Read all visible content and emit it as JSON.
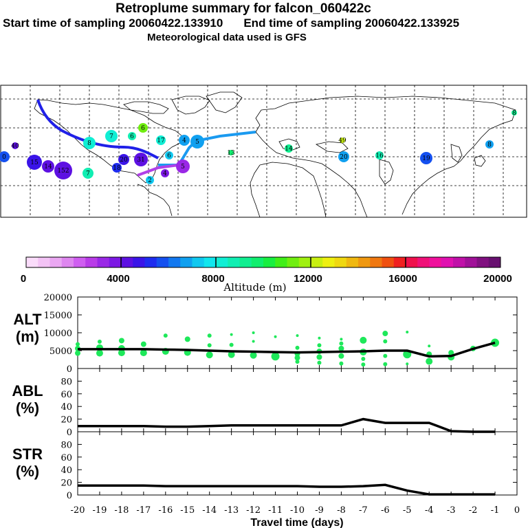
{
  "header": {
    "title": "Retroplume summary for falcon_060422c",
    "start_label": "Start time of sampling 20060422.133910",
    "end_label": "End time of sampling 20060422.133925",
    "met_label": "Meteorological data used is GFS"
  },
  "colorbar": {
    "tick_labels": [
      "0",
      "4000",
      "8000",
      "12000",
      "16000",
      "20000"
    ],
    "title": "Altitude (m)",
    "colors": [
      "#fadcfa",
      "#f3c3f5",
      "#eaa7f2",
      "#de86ef",
      "#cf5ef0",
      "#b93ce8",
      "#9a28e6",
      "#7c18e4",
      "#5d10e2",
      "#3a14e8",
      "#1e2cf0",
      "#1450f0",
      "#1278f0",
      "#10a0f0",
      "#10c8f0",
      "#10e6ee",
      "#10eed4",
      "#10eeb2",
      "#10ee90",
      "#10ee6e",
      "#18ee40",
      "#40ee18",
      "#70ee10",
      "#a0f010",
      "#c8f010",
      "#eef010",
      "#f0d810",
      "#f0b810",
      "#f09810",
      "#f07810",
      "#f05010",
      "#f02020",
      "#f0104c",
      "#f01078",
      "#f0109c",
      "#e010b0",
      "#c010a8",
      "#a01098",
      "#801080",
      "#681070"
    ]
  },
  "map": {
    "markers": [
      {
        "label": "0",
        "alt": 5500
      },
      {
        "label": "15",
        "alt": 4600
      },
      {
        "label": "14",
        "alt": 4400
      },
      {
        "label": "152",
        "alt": 4000
      },
      {
        "label": "40",
        "alt": 4300
      },
      {
        "label": "7",
        "alt": 8400
      },
      {
        "label": "6",
        "alt": 11200
      },
      {
        "label": "6",
        "alt": 8600
      },
      {
        "label": "8",
        "alt": 8200
      },
      {
        "label": "18",
        "alt": 5200
      },
      {
        "label": "20",
        "alt": 4600
      },
      {
        "label": "31",
        "alt": 4400
      },
      {
        "label": "17",
        "alt": 8000
      },
      {
        "label": "4",
        "alt": 3600
      },
      {
        "label": "5",
        "alt": 3400
      },
      {
        "label": "6",
        "alt": 7400
      },
      {
        "label": "14",
        "alt": 9200
      },
      {
        "label": "13",
        "alt": 9800
      },
      {
        "label": "20",
        "alt": 6800
      },
      {
        "label": "16",
        "alt": 8600
      },
      {
        "label": "49",
        "alt": 12000
      },
      {
        "label": "19",
        "alt": 5800
      },
      {
        "label": "8",
        "alt": 6800
      },
      {
        "label": "8",
        "alt": 9400
      },
      {
        "label": "4",
        "alt": 6600
      },
      {
        "label": "7",
        "alt": 8800
      },
      {
        "label": "2",
        "alt": 7200
      },
      {
        "label": "5",
        "alt": 6600
      }
    ]
  },
  "chart_data": [
    {
      "type": "scatter",
      "panel": "ALT",
      "ylabel": "ALT\n(m)",
      "ylabel_lines": [
        "ALT",
        "(m)"
      ],
      "xlabel": "Travel time (days)",
      "ylim": [
        0,
        20000
      ],
      "yticks": [
        "0",
        "5000",
        "10000",
        "15000",
        "20000"
      ],
      "xticks": [
        "-20",
        "-19",
        "-18",
        "-17",
        "-16",
        "-15",
        "-14",
        "-13",
        "-12",
        "-11",
        "-10",
        "-9",
        "-8",
        "-7",
        "-6",
        "-5",
        "-4",
        "-3",
        "-2",
        "-1",
        "0"
      ],
      "mean_line": {
        "x": [
          -20,
          -19,
          -18,
          -17,
          -16,
          -15,
          -14,
          -13,
          -12,
          -11,
          -10,
          -9,
          -8,
          -7,
          -6,
          -5,
          -4,
          -3,
          -2,
          -1
        ],
        "y": [
          5400,
          5400,
          5400,
          5400,
          5300,
          5200,
          5000,
          4800,
          4700,
          4600,
          4500,
          4600,
          4700,
          4800,
          5000,
          5000,
          3400,
          3500,
          5500,
          7200
        ]
      },
      "points": [
        {
          "x": -20,
          "y": 6800,
          "s": 3
        },
        {
          "x": -20,
          "y": 5600,
          "s": 4
        },
        {
          "x": -20,
          "y": 4300,
          "s": 4
        },
        {
          "x": -19,
          "y": 7500,
          "s": 3
        },
        {
          "x": -19,
          "y": 5800,
          "s": 5
        },
        {
          "x": -19,
          "y": 4300,
          "s": 5
        },
        {
          "x": -18,
          "y": 7800,
          "s": 4
        },
        {
          "x": -18,
          "y": 5600,
          "s": 5
        },
        {
          "x": -18,
          "y": 4400,
          "s": 5
        },
        {
          "x": -17,
          "y": 6800,
          "s": 4
        },
        {
          "x": -17,
          "y": 4400,
          "s": 5
        },
        {
          "x": -16,
          "y": 9200,
          "s": 3
        },
        {
          "x": -16,
          "y": 4800,
          "s": 5
        },
        {
          "x": -15,
          "y": 8200,
          "s": 4
        },
        {
          "x": -15,
          "y": 4500,
          "s": 5
        },
        {
          "x": -14,
          "y": 9200,
          "s": 3
        },
        {
          "x": -14,
          "y": 6500,
          "s": 3
        },
        {
          "x": -14,
          "y": 3800,
          "s": 5
        },
        {
          "x": -13,
          "y": 9500,
          "s": 2
        },
        {
          "x": -13,
          "y": 6600,
          "s": 3
        },
        {
          "x": -13,
          "y": 3900,
          "s": 5
        },
        {
          "x": -12,
          "y": 10000,
          "s": 2
        },
        {
          "x": -12,
          "y": 7600,
          "s": 2
        },
        {
          "x": -12,
          "y": 3700,
          "s": 5
        },
        {
          "x": -11,
          "y": 8900,
          "s": 2
        },
        {
          "x": -11,
          "y": 3400,
          "s": 6
        },
        {
          "x": -10,
          "y": 9200,
          "s": 2
        },
        {
          "x": -10,
          "y": 5800,
          "s": 3
        },
        {
          "x": -10,
          "y": 4100,
          "s": 4
        },
        {
          "x": -10,
          "y": 3000,
          "s": 4
        },
        {
          "x": -10,
          "y": 1900,
          "s": 3
        },
        {
          "x": -9,
          "y": 8500,
          "s": 2
        },
        {
          "x": -9,
          "y": 6500,
          "s": 3
        },
        {
          "x": -9,
          "y": 4800,
          "s": 4
        },
        {
          "x": -9,
          "y": 3200,
          "s": 4
        },
        {
          "x": -9,
          "y": 1600,
          "s": 3
        },
        {
          "x": -8,
          "y": 8200,
          "s": 2
        },
        {
          "x": -8,
          "y": 7000,
          "s": 3
        },
        {
          "x": -8,
          "y": 5600,
          "s": 4
        },
        {
          "x": -8,
          "y": 3500,
          "s": 4
        },
        {
          "x": -8,
          "y": 1400,
          "s": 3
        },
        {
          "x": -7,
          "y": 7900,
          "s": 5
        },
        {
          "x": -7,
          "y": 4600,
          "s": 5
        },
        {
          "x": -7,
          "y": 2700,
          "s": 3
        },
        {
          "x": -7,
          "y": 1100,
          "s": 3
        },
        {
          "x": -6,
          "y": 9800,
          "s": 4
        },
        {
          "x": -6,
          "y": 7600,
          "s": 3
        },
        {
          "x": -6,
          "y": 3500,
          "s": 3
        },
        {
          "x": -6,
          "y": 1200,
          "s": 3
        },
        {
          "x": -5,
          "y": 10200,
          "s": 2
        },
        {
          "x": -5,
          "y": 4000,
          "s": 6
        },
        {
          "x": -5,
          "y": 1300,
          "s": 2
        },
        {
          "x": -4,
          "y": 6300,
          "s": 2
        },
        {
          "x": -4,
          "y": 4000,
          "s": 4
        },
        {
          "x": -4,
          "y": 2000,
          "s": 5
        },
        {
          "x": -3,
          "y": 4400,
          "s": 4
        },
        {
          "x": -3,
          "y": 3200,
          "s": 5
        },
        {
          "x": -2,
          "y": 5600,
          "s": 4
        },
        {
          "x": -1,
          "y": 7200,
          "s": 6
        }
      ]
    },
    {
      "type": "line",
      "panel": "ABL",
      "ylabel_lines": [
        "ABL",
        "(%)"
      ],
      "ylim": [
        0,
        100
      ],
      "yticks": [
        "0",
        "20",
        "40",
        "60",
        "80"
      ],
      "x": [
        -20,
        -19,
        -18,
        -17,
        -16,
        -15,
        -14,
        -13,
        -12,
        -11,
        -10,
        -9,
        -8,
        -7,
        -6,
        -5,
        -4,
        -3,
        -2,
        -1
      ],
      "y": [
        9,
        9,
        9,
        9,
        8,
        8,
        9,
        10,
        10,
        10,
        10,
        10,
        10,
        20,
        14,
        14,
        14,
        1,
        0,
        0
      ]
    },
    {
      "type": "line",
      "panel": "STR",
      "ylabel_lines": [
        "STR",
        "(%)"
      ],
      "ylim": [
        0,
        100
      ],
      "yticks": [
        "0",
        "20",
        "40",
        "60",
        "80"
      ],
      "x": [
        -20,
        -19,
        -18,
        -17,
        -16,
        -15,
        -14,
        -13,
        -12,
        -11,
        -10,
        -9,
        -8,
        -7,
        -6,
        -5,
        -4,
        -3,
        -2,
        -1
      ],
      "y": [
        15,
        15,
        15,
        15,
        14,
        14,
        14,
        14,
        14,
        14,
        14,
        13,
        13,
        14,
        16,
        7,
        1,
        1,
        1,
        1
      ]
    }
  ]
}
